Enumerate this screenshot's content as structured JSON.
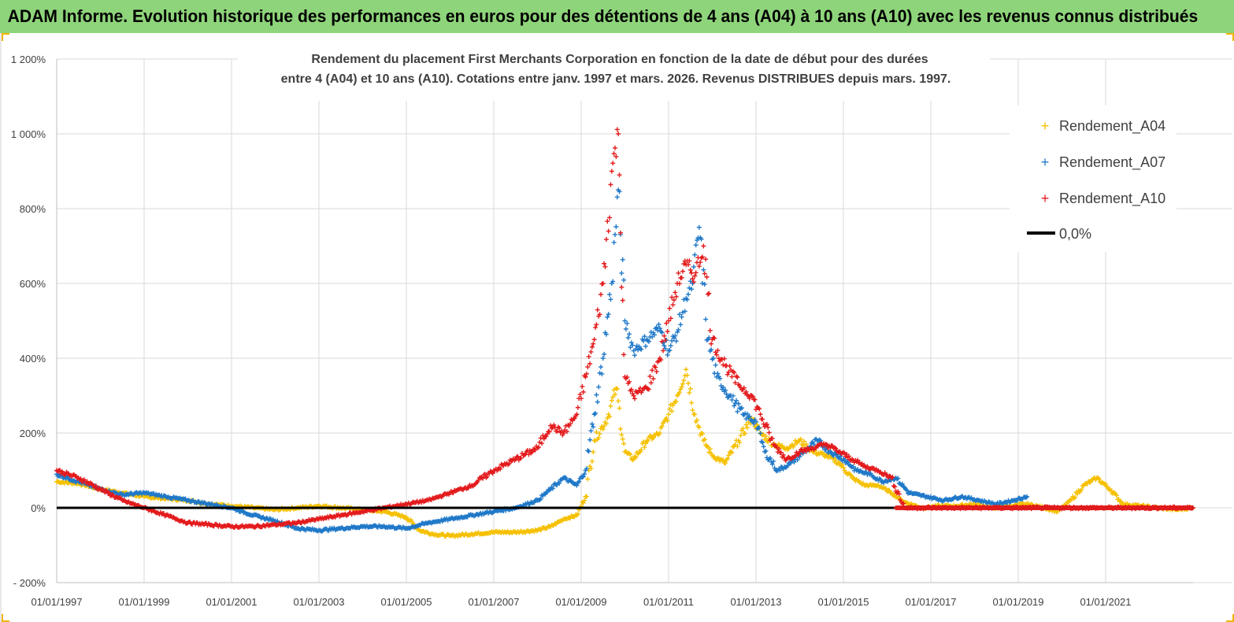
{
  "header": {
    "title": "ADAM Informe. Evolution historique des performances en euros pour des détentions de 4 ans (A04) à 10 ans (A10) avec les revenus connus distribués"
  },
  "chart_data": {
    "type": "scatter",
    "title_line1": "Rendement du placement First Merchants Corporation en fonction de la date de début pour des durées",
    "title_line2": "entre 4 (A04) et 10 ans (A10). Cotations entre janv. 1997 et mars. 2026. Revenus DISTRIBUES depuis mars. 1997.",
    "xlabel": "",
    "ylabel": "",
    "xlim": [
      1997.0,
      2023.0
    ],
    "ylim": [
      -200,
      1200
    ],
    "y_ticks": [
      -200,
      0,
      200,
      400,
      600,
      800,
      1000,
      1200
    ],
    "y_tick_labels": [
      "- 200%",
      "0%",
      "200%",
      "400%",
      "600%",
      "800%",
      "1 000%",
      "1 200%"
    ],
    "x_ticks": [
      1997,
      1999,
      2001,
      2003,
      2005,
      2007,
      2009,
      2011,
      2013,
      2015,
      2017,
      2019,
      2021
    ],
    "x_tick_labels": [
      "01/01/1997",
      "01/01/1999",
      "01/01/2001",
      "01/01/2003",
      "01/01/2005",
      "01/01/2007",
      "01/01/2009",
      "01/01/2011",
      "01/01/2013",
      "01/01/2015",
      "01/01/2017",
      "01/01/2019",
      "01/01/2021"
    ],
    "legend_position": "top-right",
    "reference_line": {
      "name": "0,0%",
      "y": 0,
      "color": "#000000"
    },
    "series": [
      {
        "name": "Rendement_A04",
        "color": "#f5c000",
        "marker": "+",
        "x": [
          1997.0,
          1997.5,
          1998.0,
          1998.5,
          1999.0,
          1999.5,
          2000.0,
          2000.5,
          2001.0,
          2001.5,
          2002.0,
          2002.5,
          2003.0,
          2003.5,
          2004.0,
          2004.5,
          2005.0,
          2005.3,
          2005.6,
          2006.0,
          2006.5,
          2007.0,
          2007.5,
          2008.0,
          2008.3,
          2008.6,
          2008.9,
          2009.1,
          2009.3,
          2009.6,
          2009.8,
          2010.0,
          2010.2,
          2010.5,
          2010.8,
          2011.0,
          2011.2,
          2011.4,
          2011.6,
          2011.8,
          2012.0,
          2012.3,
          2012.6,
          2012.9,
          2013.1,
          2013.4,
          2013.7,
          2014.0,
          2014.3,
          2014.6,
          2014.9,
          2015.2,
          2015.5,
          2015.8,
          2016.1,
          2016.4,
          2016.8,
          2017.2,
          2017.6,
          2018.0,
          2018.4,
          2018.8,
          2019.2,
          2019.6,
          2019.9,
          2020.2,
          2020.5,
          2020.8,
          2021.1,
          2021.4,
          2021.8,
          2022.2,
          2022.6,
          2023.0
        ],
        "y": [
          70,
          65,
          50,
          40,
          30,
          25,
          20,
          10,
          5,
          0,
          -5,
          0,
          5,
          0,
          -5,
          -10,
          -25,
          -60,
          -70,
          -75,
          -70,
          -65,
          -65,
          -60,
          -50,
          -30,
          -20,
          30,
          180,
          240,
          320,
          150,
          130,
          180,
          200,
          250,
          300,
          370,
          250,
          180,
          140,
          120,
          180,
          240,
          200,
          170,
          160,
          180,
          150,
          140,
          120,
          80,
          60,
          60,
          40,
          15,
          0,
          5,
          5,
          10,
          0,
          5,
          10,
          0,
          -10,
          20,
          60,
          80,
          50,
          10,
          5,
          0,
          -5,
          0
        ]
      },
      {
        "name": "Rendement_A07",
        "color": "#1f78c8",
        "marker": "+",
        "x": [
          1997.0,
          1997.5,
          1998.0,
          1998.5,
          1999.0,
          1999.5,
          2000.0,
          2000.5,
          2001.0,
          2001.5,
          2002.0,
          2002.5,
          2003.0,
          2003.5,
          2004.0,
          2004.5,
          2005.0,
          2005.5,
          2006.0,
          2006.5,
          2007.0,
          2007.5,
          2008.0,
          2008.3,
          2008.6,
          2008.9,
          2009.1,
          2009.3,
          2009.5,
          2009.7,
          2009.85,
          2010.0,
          2010.2,
          2010.5,
          2010.8,
          2011.0,
          2011.2,
          2011.4,
          2011.55,
          2011.7,
          2011.9,
          2012.1,
          2012.4,
          2012.7,
          2013.0,
          2013.2,
          2013.5,
          2013.8,
          2014.1,
          2014.4,
          2014.7,
          2015.0,
          2015.3,
          2015.6,
          2015.9,
          2016.2,
          2016.5,
          2016.9,
          2017.3,
          2017.7,
          2018.1,
          2018.5,
          2018.9,
          2019.2
        ],
        "y": [
          90,
          70,
          50,
          35,
          40,
          30,
          20,
          10,
          0,
          -20,
          -35,
          -55,
          -60,
          -55,
          -50,
          -50,
          -55,
          -40,
          -30,
          -20,
          -10,
          0,
          20,
          50,
          80,
          60,
          100,
          250,
          400,
          600,
          850,
          500,
          420,
          450,
          480,
          420,
          470,
          560,
          600,
          750,
          450,
          350,
          300,
          250,
          230,
          150,
          100,
          120,
          150,
          180,
          150,
          130,
          100,
          90,
          70,
          80,
          40,
          30,
          20,
          30,
          20,
          10,
          20,
          30
        ]
      },
      {
        "name": "Rendement_A10",
        "color": "#e31a1c",
        "marker": "+",
        "x": [
          1997.0,
          1997.5,
          1998.0,
          1998.5,
          1999.0,
          1999.5,
          2000.0,
          2000.5,
          2001.0,
          2001.5,
          2002.0,
          2002.5,
          2003.0,
          2003.5,
          2004.0,
          2004.5,
          2005.0,
          2005.5,
          2006.0,
          2006.5,
          2007.0,
          2007.5,
          2008.0,
          2008.3,
          2008.6,
          2008.9,
          2009.1,
          2009.3,
          2009.5,
          2009.7,
          2009.85,
          2010.0,
          2010.2,
          2010.5,
          2010.8,
          2011.0,
          2011.2,
          2011.4,
          2011.6,
          2011.8,
          2012.0,
          2012.3,
          2012.6,
          2012.9,
          2013.1,
          2013.4,
          2013.7,
          2014.0,
          2014.3,
          2014.6,
          2014.9,
          2015.2,
          2015.5,
          2015.8,
          2016.1,
          2016.4,
          2016.8,
          2017.5,
          2018.5,
          2019.5,
          2020.5,
          2021.5,
          2022.5,
          2023.0
        ],
        "y": [
          100,
          80,
          50,
          20,
          0,
          -20,
          -40,
          -45,
          -50,
          -50,
          -45,
          -40,
          -30,
          -20,
          -10,
          0,
          10,
          20,
          40,
          60,
          100,
          130,
          160,
          220,
          200,
          250,
          350,
          450,
          600,
          900,
          1000,
          350,
          300,
          320,
          400,
          500,
          600,
          650,
          620,
          700,
          450,
          380,
          330,
          300,
          250,
          170,
          130,
          150,
          160,
          170,
          150,
          130,
          110,
          100,
          80,
          0,
          0,
          0,
          0,
          0,
          0,
          0,
          0,
          0
        ]
      }
    ]
  }
}
